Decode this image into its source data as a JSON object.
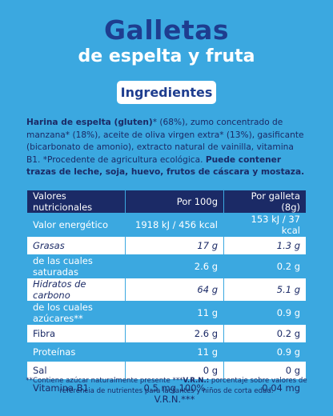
{
  "header": {
    "title": "Galletas",
    "subtitle": "de espelta y fruta"
  },
  "ingredients": {
    "heading": "Ingredientes",
    "text": [
      {
        "bold": true,
        "text": "Harina de espelta (gluten)"
      },
      {
        "bold": false,
        "text": "* (68%), zumo concentrado de manzana* (18%), aceite de oliva virgen extra* (13%), gasificante (bicarbonato de amonio), extracto natural de vainilla, vitamina B1. *Procedente de agricultura ecológica. "
      },
      {
        "bold": true,
        "text": "Puede contener trazas de leche, soja, huevo, frutos de cáscara y mostaza."
      }
    ]
  },
  "table": {
    "columns": [
      "Valores nutricionales",
      "Por 100g",
      "Por galleta (8g)"
    ],
    "rows": [
      [
        "Valor energético",
        "1918 kJ / 456 kcal",
        "153 kJ / 37 kcal"
      ],
      [
        "Grasas",
        "17 g",
        "1.3 g"
      ],
      [
        "de las cuales saturadas",
        "2.6 g",
        "0.2 g"
      ],
      [
        "Hidratos de carbono",
        "64 g",
        "5.1 g"
      ],
      [
        "de los cuales azúcares**",
        "11 g",
        "0.9 g"
      ],
      [
        "Fibra",
        "2.6 g",
        "0.2 g"
      ],
      [
        "Proteínas",
        "11 g",
        "0.9 g"
      ],
      [
        "Sal",
        "0 g",
        "0 g"
      ],
      [
        "Vitamina B1",
        "0.5 mg 100% V.R.N.***",
        "0.04 mg"
      ]
    ]
  },
  "footnote": [
    {
      "bold": false,
      "text": "**Contiene azúcar naturalmente presente ***"
    },
    {
      "bold": true,
      "text": "V.R.N.:"
    },
    {
      "bold": false,
      "text": " porcentaje sobre valores de referencia de nutrientes para lactantes y niños de corta edad."
    }
  ]
}
